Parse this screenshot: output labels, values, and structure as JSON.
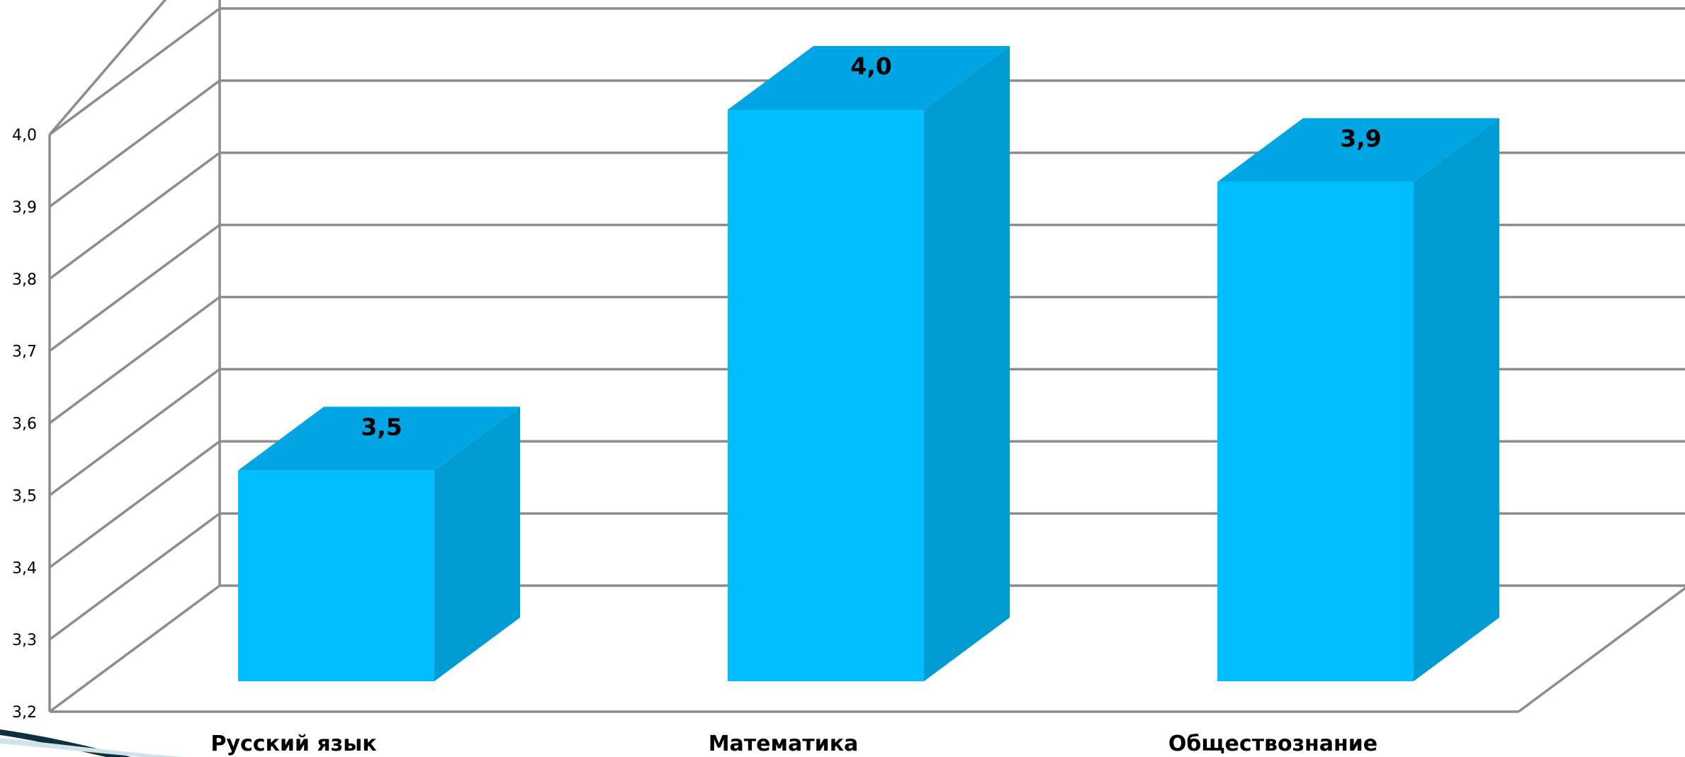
{
  "chart_data": {
    "type": "bar",
    "categories": [
      "Русский язык",
      "Математика",
      "Обществознание"
    ],
    "values": [
      3.5,
      4.0,
      3.9
    ],
    "value_labels": [
      "3,5",
      "4,0",
      "3,9"
    ],
    "ylim": [
      3.2,
      4.0
    ],
    "y_ticks": [
      "3,2",
      "3,3",
      "3,4",
      "3,5",
      "3,6",
      "3,7",
      "3,8",
      "3,9",
      "4,0"
    ],
    "grid": true,
    "style": "3d-column",
    "colors": {
      "front": "#00bfff",
      "top": "#00a5e3",
      "side": "#009bd3",
      "grid": "#8c8c8c"
    }
  }
}
